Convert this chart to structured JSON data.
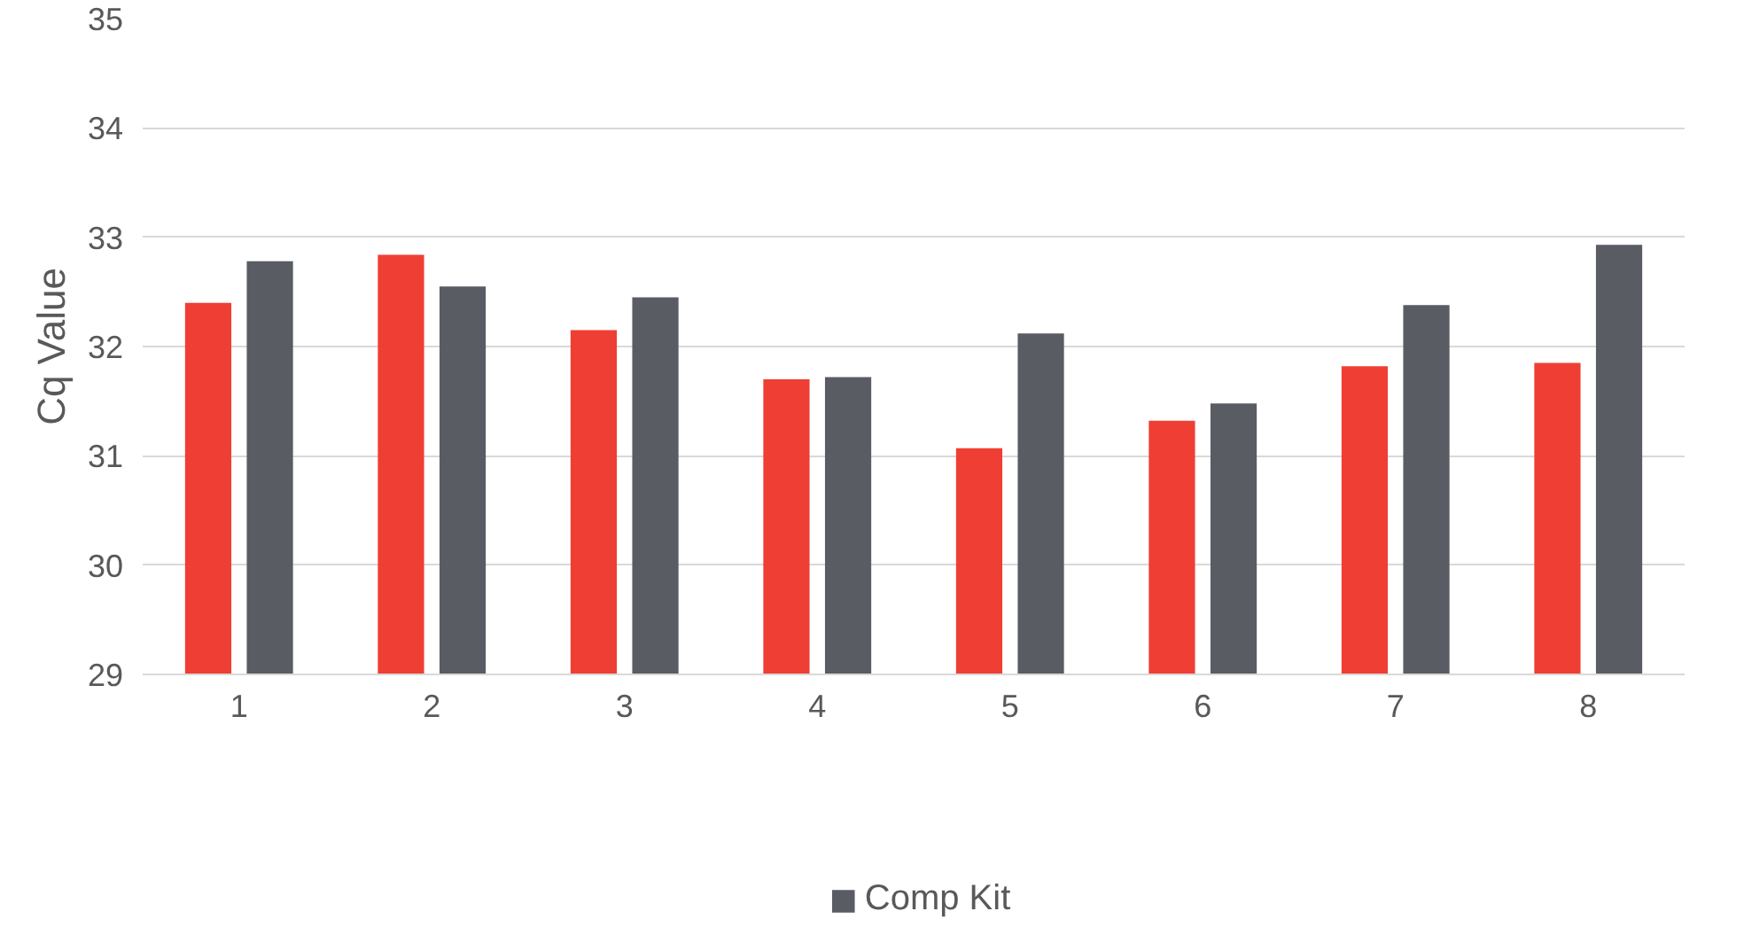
{
  "chart_data": {
    "type": "bar",
    "ylabel": "Cq Value",
    "categories": [
      "1",
      "2",
      "3",
      "4",
      "5",
      "6",
      "7",
      "8"
    ],
    "series": [
      {
        "color": "#ef3e33",
        "values": [
          32.4,
          32.84,
          32.15,
          31.7,
          31.07,
          31.32,
          31.82,
          31.85
        ]
      },
      {
        "name": "Comp Kit",
        "color": "#595c63",
        "values": [
          32.78,
          32.55,
          32.45,
          31.72,
          32.12,
          31.48,
          32.38,
          32.93
        ]
      }
    ],
    "ylim": [
      29,
      35
    ],
    "yticks": [
      29,
      30,
      31,
      32,
      33,
      34,
      35
    ],
    "grid": "y",
    "legend": "bottom"
  }
}
